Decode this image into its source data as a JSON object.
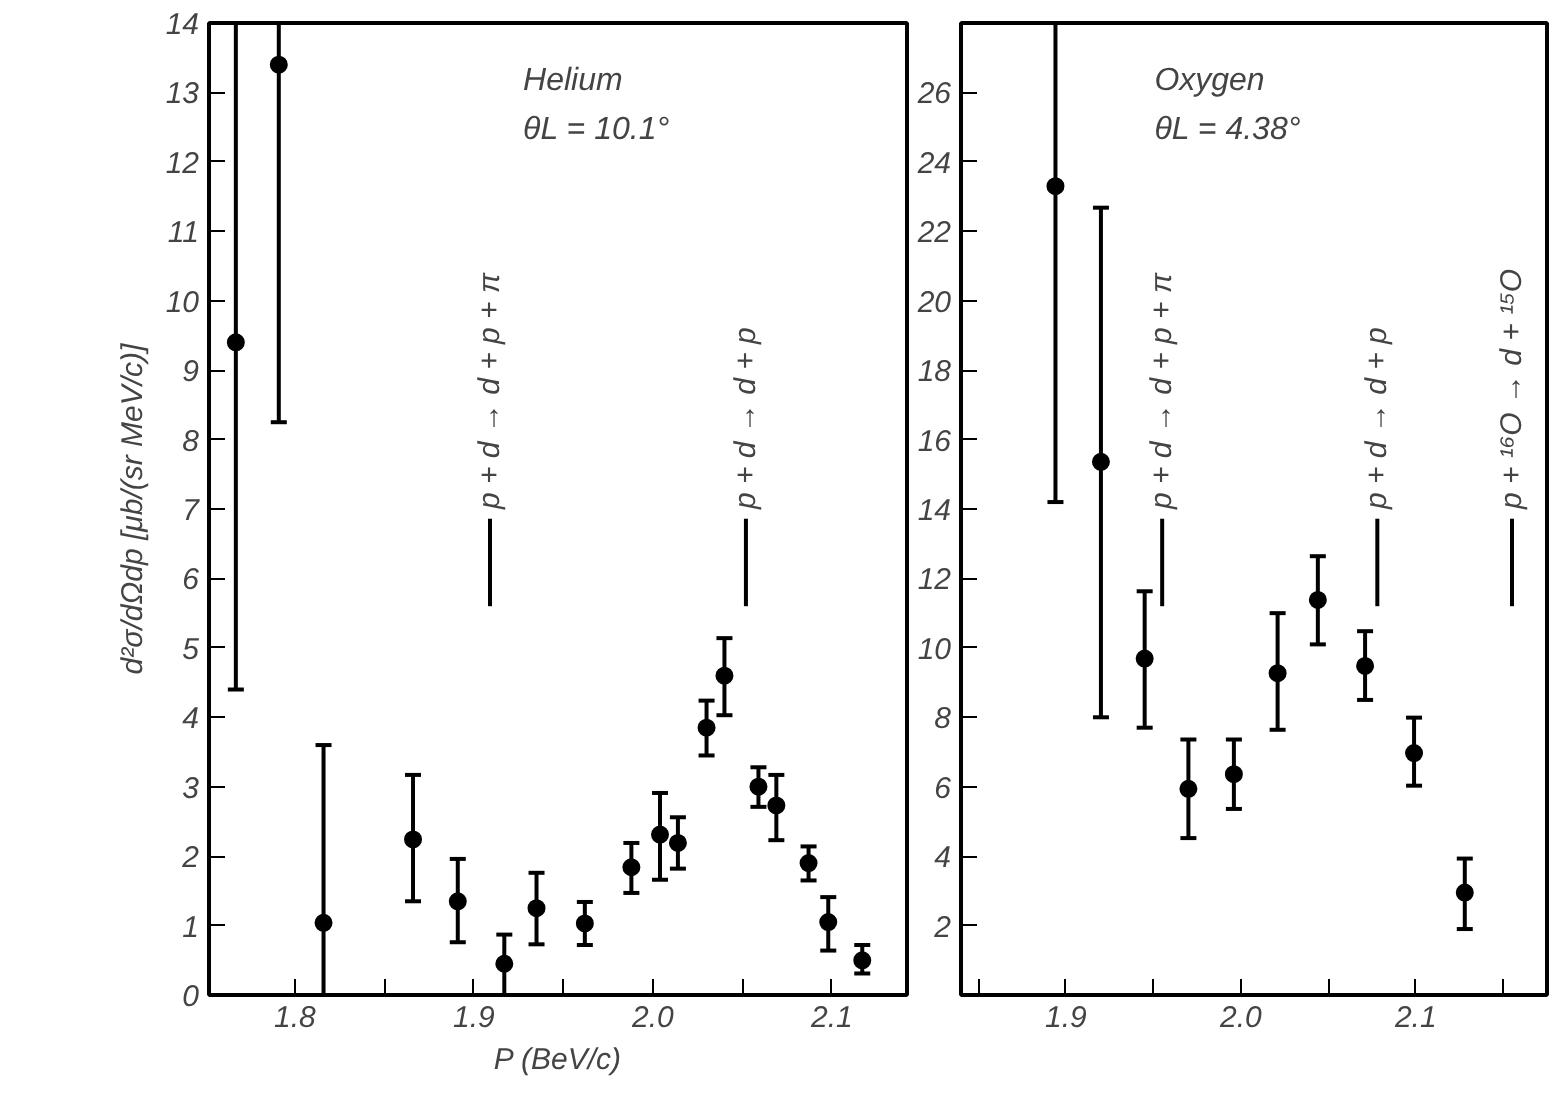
{
  "chart_data": [
    {
      "type": "scatter",
      "xlabel": "P (BeV/c)",
      "ylabel": "d²σ/dΩdp [μb/(sr MeV/c)]",
      "marker": "circle",
      "xlim": [
        1.752,
        2.142
      ],
      "ylim": [
        0,
        14
      ],
      "xticks": [
        1.8,
        {
          "value": 1.85,
          "label": null
        },
        1.9,
        {
          "value": 1.95,
          "label": null
        },
        {
          "value": 2.0,
          "label": "2.0"
        },
        {
          "value": 2.05,
          "label": null
        },
        2.1
      ],
      "yticks": [
        0,
        1,
        2,
        3,
        4,
        5,
        6,
        7,
        8,
        9,
        10,
        11,
        12,
        13,
        14
      ],
      "x": [
        1.767,
        1.791,
        1.816,
        1.866,
        1.891,
        1.917,
        1.935,
        1.962,
        1.988,
        2.004,
        2.014,
        2.03,
        2.04,
        2.059,
        2.069,
        2.087,
        2.098,
        2.117
      ],
      "values": [
        9.4,
        13.4,
        1.04,
        2.24,
        1.35,
        0.45,
        1.25,
        1.03,
        1.84,
        2.31,
        2.19,
        3.85,
        4.6,
        3.0,
        2.73,
        1.9,
        1.05,
        0.5
      ],
      "errors": [
        [
          4.4,
          14
        ],
        [
          8.25,
          14
        ],
        [
          0,
          3.6
        ],
        [
          1.35,
          3.17
        ],
        [
          0.76,
          1.96
        ],
        [
          0,
          0.87
        ],
        [
          0.73,
          1.76
        ],
        [
          0.72,
          1.34
        ],
        [
          1.47,
          2.19
        ],
        [
          1.66,
          2.91
        ],
        [
          1.82,
          2.56
        ],
        [
          3.45,
          4.24
        ],
        [
          4.03,
          5.14
        ],
        [
          2.71,
          3.28
        ],
        [
          2.23,
          3.17
        ],
        [
          1.65,
          2.14
        ],
        [
          0.64,
          1.41
        ],
        [
          0.31,
          0.72
        ]
      ],
      "annotations": [
        "Helium",
        "θL = 10.1°"
      ],
      "ref_lines": [
        {
          "axis": "x",
          "value": 1.909,
          "label": "p + d → d + p + π"
        },
        {
          "axis": "x",
          "value": 2.052,
          "label": "p + d → d + p"
        }
      ]
    },
    {
      "type": "scatter",
      "marker": "circle",
      "xlim": [
        1.84,
        2.175
      ],
      "ylim": [
        0,
        28
      ],
      "xticks": [
        {
          "value": 1.85,
          "label": null
        },
        1.9,
        {
          "value": 1.95,
          "label": null
        },
        {
          "value": 2.0,
          "label": "2.0"
        },
        {
          "value": 2.05,
          "label": null
        },
        2.1,
        {
          "value": 2.15,
          "label": null
        }
      ],
      "yticks": [
        2,
        4,
        6,
        8,
        10,
        12,
        14,
        16,
        18,
        20,
        22,
        24,
        26
      ],
      "x": [
        1.894,
        1.92,
        1.945,
        1.97,
        1.996,
        2.021,
        2.044,
        2.071,
        2.099,
        2.128
      ],
      "values": [
        23.3,
        15.36,
        9.69,
        5.94,
        6.36,
        9.27,
        11.38,
        9.48,
        6.97,
        2.95
      ],
      "errors": [
        [
          14.2,
          28
        ],
        [
          8.0,
          22.68
        ],
        [
          7.7,
          11.63
        ],
        [
          4.52,
          7.36
        ],
        [
          5.36,
          7.36
        ],
        [
          7.64,
          11.0
        ],
        [
          10.1,
          12.64
        ],
        [
          8.5,
          10.48
        ],
        [
          6.03,
          7.99
        ],
        [
          1.9,
          3.93
        ]
      ],
      "annotations": [
        "Oxygen",
        "θL = 4.38°"
      ],
      "ref_lines": [
        {
          "axis": "x",
          "value": 1.955,
          "label": "p + d → d + p + π"
        },
        {
          "axis": "x",
          "value": 2.078,
          "label": "p + d → d + p"
        },
        {
          "axis": "x",
          "value": 2.155,
          "label": "p + ¹⁶O → d + ¹⁵O"
        }
      ]
    }
  ]
}
